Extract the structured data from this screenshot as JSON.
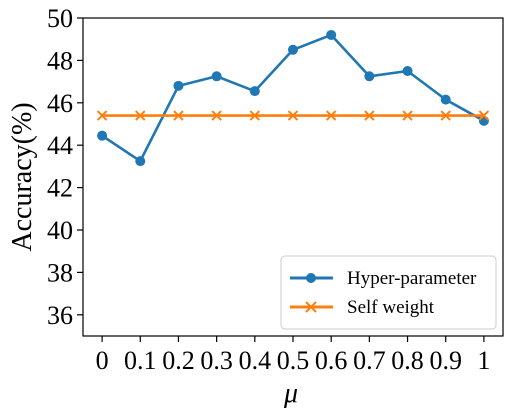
{
  "chart_data": {
    "type": "line",
    "title": "",
    "xlabel": "μ",
    "ylabel": "Accuracy(%)",
    "x": [
      0,
      0.1,
      0.2,
      0.3,
      0.4,
      0.5,
      0.6,
      0.7,
      0.8,
      0.9,
      1
    ],
    "x_tick_labels": [
      "0",
      "0.1",
      "0.2",
      "0.3",
      "0.4",
      "0.5",
      "0.6",
      "0.7",
      "0.8",
      "0.9",
      "1"
    ],
    "y_ticks": [
      36,
      38,
      40,
      42,
      44,
      46,
      48,
      50
    ],
    "ylim": [
      35,
      50
    ],
    "xlim": [
      -0.05,
      1.05
    ],
    "grid": false,
    "legend_position": "lower-right",
    "series": [
      {
        "name": "Hyper-parameter",
        "color": "#1f77b4",
        "marker": "circle",
        "values": [
          44.45,
          43.25,
          46.8,
          47.25,
          46.55,
          48.5,
          49.2,
          47.25,
          47.5,
          46.15,
          45.15
        ]
      },
      {
        "name": "Self weight",
        "color": "#ff7f0e",
        "marker": "x",
        "values": [
          45.4,
          45.4,
          45.4,
          45.4,
          45.4,
          45.4,
          45.4,
          45.4,
          45.4,
          45.4,
          45.4
        ]
      }
    ]
  }
}
